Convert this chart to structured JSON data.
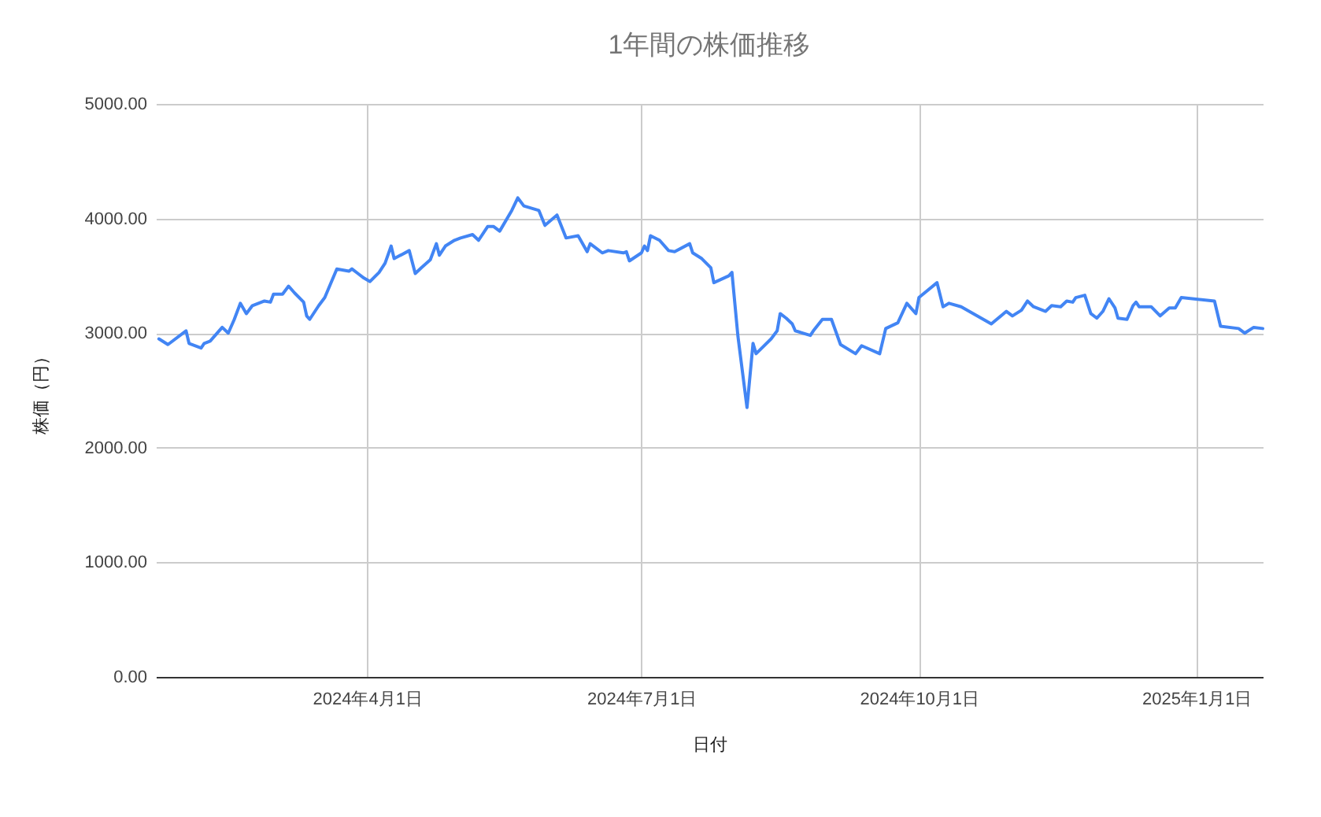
{
  "chart_data": {
    "type": "line",
    "title": "1年間の株価推移",
    "xlabel": "日付",
    "ylabel": "株価（円）",
    "x": [
      "2024-01-23",
      "2024-01-26",
      "2024-02-01",
      "2024-02-02",
      "2024-02-06",
      "2024-02-07",
      "2024-02-09",
      "2024-02-13",
      "2024-02-15",
      "2024-02-17",
      "2024-02-19",
      "2024-02-21",
      "2024-02-23",
      "2024-02-27",
      "2024-02-29",
      "2024-03-01",
      "2024-03-04",
      "2024-03-06",
      "2024-03-08",
      "2024-03-11",
      "2024-03-12",
      "2024-03-13",
      "2024-03-16",
      "2024-03-18",
      "2024-03-22",
      "2024-03-26",
      "2024-03-27",
      "2024-03-29",
      "2024-03-31",
      "2024-04-02",
      "2024-04-05",
      "2024-04-07",
      "2024-04-09",
      "2024-04-10",
      "2024-04-15",
      "2024-04-17",
      "2024-04-19",
      "2024-04-22",
      "2024-04-24",
      "2024-04-25",
      "2024-04-27",
      "2024-04-30",
      "2024-05-02",
      "2024-05-06",
      "2024-05-08",
      "2024-05-11",
      "2024-05-13",
      "2024-05-15",
      "2024-05-19",
      "2024-05-21",
      "2024-05-23",
      "2024-05-28",
      "2024-05-30",
      "2024-06-03",
      "2024-06-06",
      "2024-06-10",
      "2024-06-13",
      "2024-06-14",
      "2024-06-18",
      "2024-06-20",
      "2024-06-25",
      "2024-06-26",
      "2024-06-27",
      "2024-07-01",
      "2024-07-02",
      "2024-07-03",
      "2024-07-04",
      "2024-07-07",
      "2024-07-10",
      "2024-07-12",
      "2024-07-17",
      "2024-07-18",
      "2024-07-21",
      "2024-07-24",
      "2024-07-25",
      "2024-07-30",
      "2024-07-31",
      "2024-08-02",
      "2024-08-05",
      "2024-08-07",
      "2024-08-08",
      "2024-08-13",
      "2024-08-15",
      "2024-08-16",
      "2024-08-18",
      "2024-08-20",
      "2024-08-21",
      "2024-08-26",
      "2024-08-27",
      "2024-08-30",
      "2024-09-02",
      "2024-09-05",
      "2024-09-10",
      "2024-09-12",
      "2024-09-18",
      "2024-09-20",
      "2024-09-24",
      "2024-09-27",
      "2024-09-30",
      "2024-10-01",
      "2024-10-07",
      "2024-10-09",
      "2024-10-11",
      "2024-10-15",
      "2024-10-25",
      "2024-10-30",
      "2024-11-01",
      "2024-11-04",
      "2024-11-06",
      "2024-11-08",
      "2024-11-12",
      "2024-11-14",
      "2024-11-17",
      "2024-11-19",
      "2024-11-21",
      "2024-11-22",
      "2024-11-25",
      "2024-11-27",
      "2024-11-29",
      "2024-12-01",
      "2024-12-03",
      "2024-12-05",
      "2024-12-06",
      "2024-12-09",
      "2024-12-11",
      "2024-12-12",
      "2024-12-13",
      "2024-12-17",
      "2024-12-20",
      "2024-12-23",
      "2024-12-25",
      "2024-12-27",
      "2025-01-07",
      "2025-01-09",
      "2025-01-15",
      "2025-01-17",
      "2025-01-20",
      "2025-01-23"
    ],
    "series": [
      {
        "color": "#4285f4",
        "values": [
          2950,
          2900,
          3020,
          2910,
          2870,
          2910,
          2930,
          3050,
          3000,
          3120,
          3260,
          3170,
          3240,
          3280,
          3270,
          3340,
          3340,
          3410,
          3350,
          3270,
          3150,
          3120,
          3240,
          3310,
          3560,
          3540,
          3560,
          3520,
          3480,
          3450,
          3530,
          3610,
          3760,
          3650,
          3720,
          3520,
          3570,
          3640,
          3780,
          3680,
          3760,
          3810,
          3830,
          3860,
          3810,
          3930,
          3930,
          3890,
          4070,
          4180,
          4110,
          4070,
          3940,
          4030,
          3830,
          3850,
          3710,
          3780,
          3700,
          3720,
          3700,
          3710,
          3630,
          3700,
          3760,
          3720,
          3850,
          3810,
          3720,
          3710,
          3780,
          3700,
          3650,
          3570,
          3440,
          3500,
          3530,
          2970,
          2350,
          2910,
          2820,
          2950,
          3020,
          3170,
          3130,
          3080,
          3020,
          2980,
          3020,
          3120,
          3120,
          2900,
          2820,
          2890,
          2820,
          3040,
          3090,
          3260,
          3170,
          3310,
          3440,
          3230,
          3260,
          3230,
          3080,
          3190,
          3150,
          3200,
          3280,
          3230,
          3190,
          3240,
          3230,
          3280,
          3270,
          3310,
          3330,
          3170,
          3130,
          3190,
          3300,
          3220,
          3130,
          3120,
          3240,
          3270,
          3230,
          3230,
          3150,
          3220,
          3220,
          3310,
          3280,
          3060,
          3040,
          3000,
          3050,
          3040
        ]
      }
    ],
    "xlim": [
      "2024-01-22",
      "2025-01-23"
    ],
    "xticks": [
      {
        "value": "2024-04-01",
        "label": "2024年4月1日"
      },
      {
        "value": "2024-07-01",
        "label": "2024年7月1日"
      },
      {
        "value": "2024-10-01",
        "label": "2024年10月1日"
      },
      {
        "value": "2025-01-01",
        "label": "2025年1月1日"
      }
    ],
    "ylim": [
      0,
      5000
    ],
    "yticks": [
      {
        "value": 0,
        "label": "0.00"
      },
      {
        "value": 1000,
        "label": "1000.00"
      },
      {
        "value": 2000,
        "label": "2000.00"
      },
      {
        "value": 3000,
        "label": "3000.00"
      },
      {
        "value": 4000,
        "label": "4000.00"
      },
      {
        "value": 5000,
        "label": "5000.00"
      }
    ],
    "grid": true
  }
}
